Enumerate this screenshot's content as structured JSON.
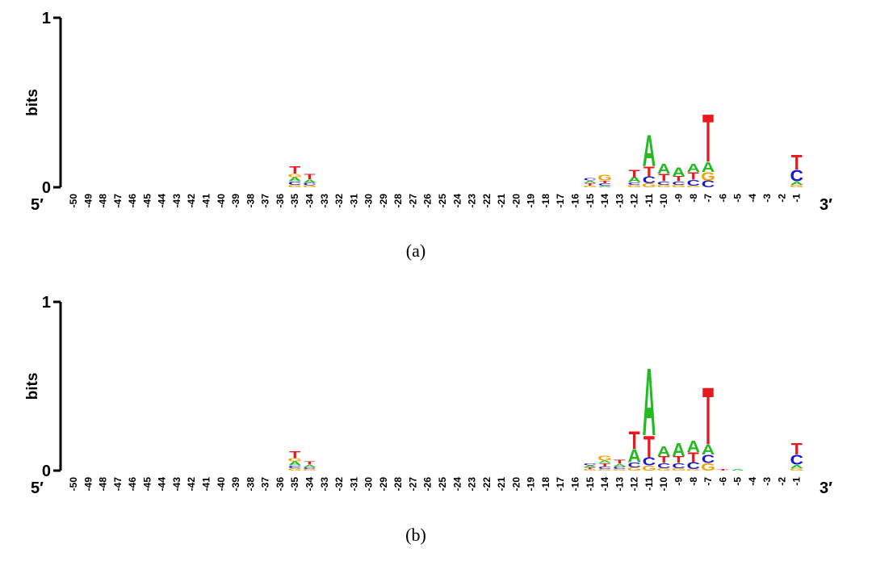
{
  "colors": {
    "A": "#22bb22",
    "C": "#1a1acc",
    "G": "#f2a100",
    "T": "#e8191e",
    "axis": "#000000"
  },
  "chart_data": [
    {
      "type": "sequence-logo",
      "caption": "(a)",
      "ylabel": "bits",
      "ylim": [
        0,
        1
      ],
      "yticks": [
        "0",
        "1"
      ],
      "left_end_label": "5′",
      "right_end_label": "3′",
      "positions": [
        "-50",
        "-49",
        "-48",
        "-47",
        "-46",
        "-45",
        "-44",
        "-43",
        "-42",
        "-41",
        "-40",
        "-39",
        "-38",
        "-37",
        "-36",
        "-35",
        "-34",
        "-33",
        "-32",
        "-31",
        "-30",
        "-29",
        "-28",
        "-27",
        "-26",
        "-25",
        "-24",
        "-23",
        "-22",
        "-21",
        "-20",
        "-19",
        "-18",
        "-17",
        "-16",
        "-15",
        "-14",
        "-13",
        "-12",
        "-11",
        "-10",
        "-9",
        "-8",
        "-7",
        "-6",
        "-5",
        "-4",
        "-3",
        "-2",
        "-1"
      ],
      "stacks": {
        "-35": [
          {
            "letter": "G",
            "h": 0.015
          },
          {
            "letter": "C",
            "h": 0.02
          },
          {
            "letter": "A",
            "h": 0.025
          },
          {
            "letter": "G",
            "h": 0.02
          },
          {
            "letter": "T",
            "h": 0.045
          }
        ],
        "-34": [
          {
            "letter": "G",
            "h": 0.012
          },
          {
            "letter": "C",
            "h": 0.015
          },
          {
            "letter": "A",
            "h": 0.02
          },
          {
            "letter": "T",
            "h": 0.03
          }
        ],
        "-15": [
          {
            "letter": "G",
            "h": 0.01
          },
          {
            "letter": "T",
            "h": 0.015
          },
          {
            "letter": "A",
            "h": 0.015
          },
          {
            "letter": "C",
            "h": 0.015
          }
        ],
        "-14": [
          {
            "letter": "A",
            "h": 0.01
          },
          {
            "letter": "C",
            "h": 0.015
          },
          {
            "letter": "T",
            "h": 0.015
          },
          {
            "letter": "G",
            "h": 0.035
          }
        ],
        "-12": [
          {
            "letter": "G",
            "h": 0.015
          },
          {
            "letter": "C",
            "h": 0.015
          },
          {
            "letter": "A",
            "h": 0.03
          },
          {
            "letter": "T",
            "h": 0.045
          }
        ],
        "-11": [
          {
            "letter": "G",
            "h": 0.025
          },
          {
            "letter": "C",
            "h": 0.04
          },
          {
            "letter": "T",
            "h": 0.06
          },
          {
            "letter": "A",
            "h": 0.19
          }
        ],
        "-10": [
          {
            "letter": "G",
            "h": 0.015
          },
          {
            "letter": "C",
            "h": 0.02
          },
          {
            "letter": "T",
            "h": 0.045
          },
          {
            "letter": "A",
            "h": 0.06
          }
        ],
        "-9": [
          {
            "letter": "G",
            "h": 0.015
          },
          {
            "letter": "C",
            "h": 0.02
          },
          {
            "letter": "T",
            "h": 0.03
          },
          {
            "letter": "A",
            "h": 0.055
          }
        ],
        "-8": [
          {
            "letter": "G",
            "h": 0.01
          },
          {
            "letter": "C",
            "h": 0.035
          },
          {
            "letter": "T",
            "h": 0.045
          },
          {
            "letter": "A",
            "h": 0.05
          }
        ],
        "-7": [
          {
            "letter": "C",
            "h": 0.04
          },
          {
            "letter": "G",
            "h": 0.05
          },
          {
            "letter": "A",
            "h": 0.06
          },
          {
            "letter": "T",
            "h": 0.29
          }
        ],
        "-1": [
          {
            "letter": "G",
            "h": 0.015
          },
          {
            "letter": "A",
            "h": 0.02
          },
          {
            "letter": "C",
            "h": 0.07
          },
          {
            "letter": "T",
            "h": 0.09
          }
        ]
      }
    },
    {
      "type": "sequence-logo",
      "caption": "(b)",
      "ylabel": "bits",
      "ylim": [
        0,
        1
      ],
      "yticks": [
        "0",
        "1"
      ],
      "left_end_label": "5′",
      "right_end_label": "3′",
      "positions": [
        "-50",
        "-49",
        "-48",
        "-47",
        "-46",
        "-45",
        "-44",
        "-43",
        "-42",
        "-41",
        "-40",
        "-39",
        "-38",
        "-37",
        "-36",
        "-35",
        "-34",
        "-33",
        "-32",
        "-31",
        "-30",
        "-29",
        "-28",
        "-27",
        "-26",
        "-25",
        "-24",
        "-23",
        "-22",
        "-21",
        "-20",
        "-19",
        "-18",
        "-17",
        "-16",
        "-15",
        "-14",
        "-13",
        "-12",
        "-11",
        "-10",
        "-9",
        "-8",
        "-7",
        "-6",
        "-5",
        "-4",
        "-3",
        "-2",
        "-1"
      ],
      "stacks": {
        "-35": [
          {
            "letter": "G",
            "h": 0.015
          },
          {
            "letter": "C",
            "h": 0.015
          },
          {
            "letter": "A",
            "h": 0.025
          },
          {
            "letter": "G",
            "h": 0.02
          },
          {
            "letter": "T",
            "h": 0.04
          }
        ],
        "-34": [
          {
            "letter": "G",
            "h": 0.01
          },
          {
            "letter": "C",
            "h": 0.01
          },
          {
            "letter": "A",
            "h": 0.015
          },
          {
            "letter": "T",
            "h": 0.02
          }
        ],
        "-15": [
          {
            "letter": "G",
            "h": 0.008
          },
          {
            "letter": "T",
            "h": 0.012
          },
          {
            "letter": "A",
            "h": 0.012
          },
          {
            "letter": "C",
            "h": 0.012
          }
        ],
        "-14": [
          {
            "letter": "G",
            "h": 0.01
          },
          {
            "letter": "C",
            "h": 0.015
          },
          {
            "letter": "T",
            "h": 0.02
          },
          {
            "letter": "A",
            "h": 0.015
          },
          {
            "letter": "G",
            "h": 0.03
          }
        ],
        "-13": [
          {
            "letter": "G",
            "h": 0.01
          },
          {
            "letter": "C",
            "h": 0.015
          },
          {
            "letter": "A",
            "h": 0.015
          },
          {
            "letter": "T",
            "h": 0.025
          }
        ],
        "-12": [
          {
            "letter": "G",
            "h": 0.02
          },
          {
            "letter": "C",
            "h": 0.03
          },
          {
            "letter": "A",
            "h": 0.08
          },
          {
            "letter": "T",
            "h": 0.11
          }
        ],
        "-11": [
          {
            "letter": "G",
            "h": 0.03
          },
          {
            "letter": "C",
            "h": 0.05
          },
          {
            "letter": "T",
            "h": 0.13
          },
          {
            "letter": "A",
            "h": 0.41
          }
        ],
        "-10": [
          {
            "letter": "G",
            "h": 0.015
          },
          {
            "letter": "C",
            "h": 0.03
          },
          {
            "letter": "T",
            "h": 0.04
          },
          {
            "letter": "A",
            "h": 0.06
          }
        ],
        "-9": [
          {
            "letter": "G",
            "h": 0.015
          },
          {
            "letter": "C",
            "h": 0.03
          },
          {
            "letter": "T",
            "h": 0.04
          },
          {
            "letter": "A",
            "h": 0.08
          }
        ],
        "-8": [
          {
            "letter": "G",
            "h": 0.01
          },
          {
            "letter": "C",
            "h": 0.04
          },
          {
            "letter": "T",
            "h": 0.06
          },
          {
            "letter": "A",
            "h": 0.07
          }
        ],
        "-7": [
          {
            "letter": "G",
            "h": 0.045
          },
          {
            "letter": "C",
            "h": 0.05
          },
          {
            "letter": "A",
            "h": 0.06
          },
          {
            "letter": "T",
            "h": 0.35
          }
        ],
        "-6": [
          {
            "letter": "T",
            "h": 0.01
          }
        ],
        "-5": [
          {
            "letter": "A",
            "h": 0.01
          }
        ],
        "-1": [
          {
            "letter": "G",
            "h": 0.015
          },
          {
            "letter": "A",
            "h": 0.02
          },
          {
            "letter": "C",
            "h": 0.06
          },
          {
            "letter": "T",
            "h": 0.07
          }
        ]
      }
    }
  ]
}
